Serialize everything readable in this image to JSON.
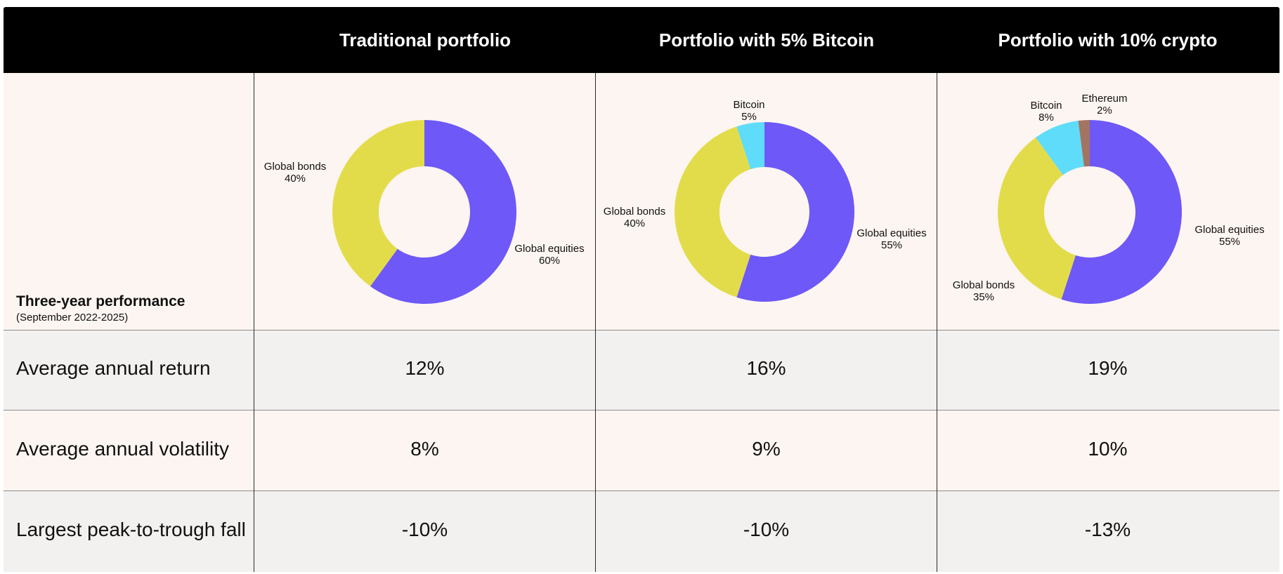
{
  "header": {
    "columns": [
      "Traditional portfolio",
      "Portfolio with 5% Bitcoin",
      "Portfolio with 10% crypto"
    ]
  },
  "performance": {
    "title": "Three-year performance",
    "subtitle": "(September 2022-2025)"
  },
  "rows": [
    {
      "label": "Average annual return",
      "values": [
        "12%",
        "16%",
        "19%"
      ]
    },
    {
      "label": "Average annual volatility",
      "values": [
        "8%",
        "9%",
        "10%"
      ]
    },
    {
      "label": "Largest peak-to-trough fall",
      "values": [
        "-10%",
        "-10%",
        "-13%"
      ]
    }
  ],
  "colors": {
    "Global equities": "#6e58f7",
    "Global bonds": "#e3dc4a",
    "Bitcoin": "#5fdcfa",
    "Ethereum": "#a47462",
    "header_bg": "#000000",
    "row_bg": "#fdf5f1",
    "row_alt_bg": "#f3f1ef"
  },
  "chart_data": [
    {
      "type": "pie",
      "title": "Traditional portfolio",
      "slices": [
        {
          "label": "Global equities",
          "value": 60,
          "value_label": "60%"
        },
        {
          "label": "Global bonds",
          "value": 40,
          "value_label": "40%"
        }
      ]
    },
    {
      "type": "pie",
      "title": "Portfolio with 5% Bitcoin",
      "slices": [
        {
          "label": "Global equities",
          "value": 55,
          "value_label": "55%"
        },
        {
          "label": "Global bonds",
          "value": 40,
          "value_label": "40%"
        },
        {
          "label": "Bitcoin",
          "value": 5,
          "value_label": "5%"
        }
      ]
    },
    {
      "type": "pie",
      "title": "Portfolio with 10% crypto",
      "slices": [
        {
          "label": "Global equities",
          "value": 55,
          "value_label": "55%"
        },
        {
          "label": "Global bonds",
          "value": 35,
          "value_label": "35%"
        },
        {
          "label": "Bitcoin",
          "value": 8,
          "value_label": "8%"
        },
        {
          "label": "Ethereum",
          "value": 2,
          "value_label": "2%"
        }
      ]
    }
  ]
}
